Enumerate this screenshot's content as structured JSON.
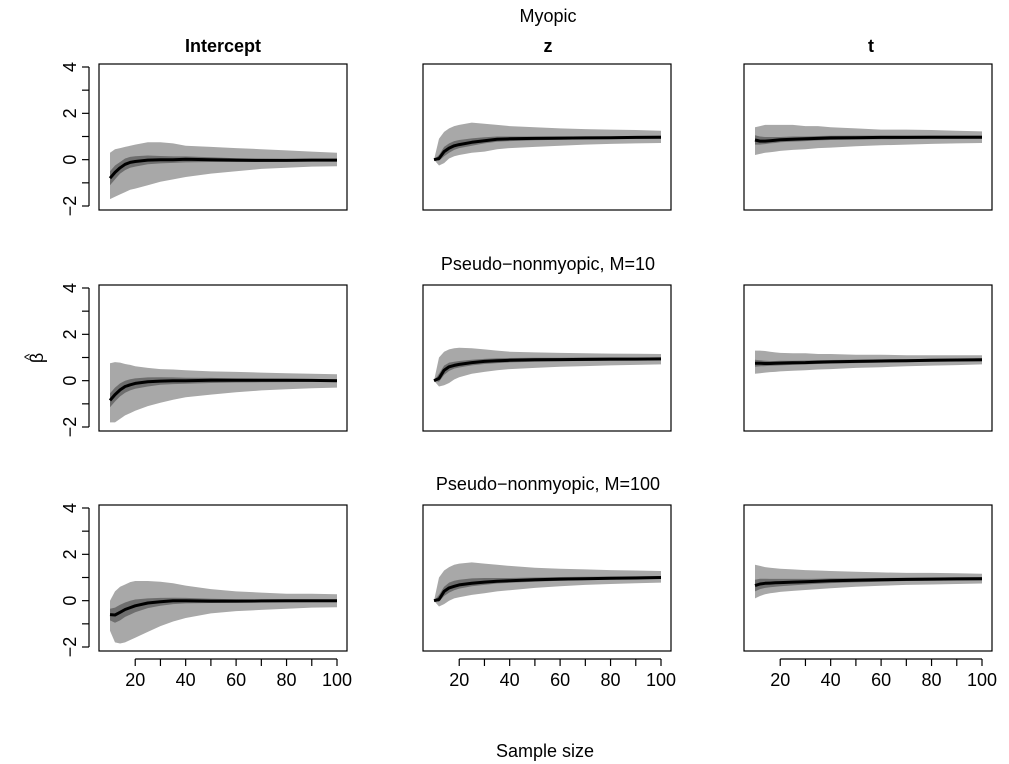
{
  "chart_data": {
    "type": "line",
    "rows": [
      {
        "title": "Myopic"
      },
      {
        "title": "Pseudo−nonmyopic, M=10"
      },
      {
        "title": "Pseudo−nonmyopic, M=100"
      }
    ],
    "columns": [
      {
        "title": "Intercept"
      },
      {
        "title": "z"
      },
      {
        "title": "t"
      }
    ],
    "xlabel": "Sample size",
    "ylabel_text": "β",
    "ylabel_hat": "^",
    "xlim": [
      10,
      100
    ],
    "ylim": [
      -2,
      4
    ],
    "x_ticks": [
      20,
      40,
      60,
      80,
      100
    ],
    "x_tick_labels": [
      "20",
      "40",
      "60",
      "80",
      "100"
    ],
    "y_ticks": [
      -2,
      0,
      2,
      4
    ],
    "y_tick_labels": [
      "−2",
      "0",
      "2",
      "4"
    ],
    "colors": {
      "outer_band": "#a8a8a8",
      "inner_band": "#6e6e6e",
      "line": "#000000"
    },
    "x": [
      10,
      12,
      14,
      16,
      18,
      20,
      25,
      30,
      35,
      40,
      50,
      60,
      70,
      80,
      90,
      100
    ],
    "panels": [
      {
        "row": 0,
        "col": 0,
        "mean": [
          -0.8,
          -0.55,
          -0.35,
          -0.2,
          -0.12,
          -0.08,
          -0.02,
          0.0,
          0.0,
          0.02,
          0.0,
          -0.02,
          -0.03,
          -0.03,
          -0.02,
          -0.02
        ],
        "inner_lo": [
          -1.1,
          -0.85,
          -0.6,
          -0.45,
          -0.35,
          -0.3,
          -0.2,
          -0.16,
          -0.14,
          -0.12,
          -0.1,
          -0.1,
          -0.09,
          -0.08,
          -0.07,
          -0.07
        ],
        "inner_hi": [
          -0.5,
          -0.25,
          -0.1,
          0.05,
          0.12,
          0.15,
          0.18,
          0.16,
          0.14,
          0.14,
          0.1,
          0.06,
          0.04,
          0.03,
          0.03,
          0.03
        ],
        "outer_lo": [
          -1.7,
          -1.6,
          -1.5,
          -1.4,
          -1.3,
          -1.25,
          -1.1,
          -0.95,
          -0.85,
          -0.75,
          -0.6,
          -0.5,
          -0.4,
          -0.35,
          -0.3,
          -0.28
        ],
        "outer_hi": [
          0.3,
          0.45,
          0.5,
          0.55,
          0.6,
          0.65,
          0.75,
          0.75,
          0.7,
          0.6,
          0.55,
          0.5,
          0.45,
          0.4,
          0.35,
          0.3
        ]
      },
      {
        "row": 0,
        "col": 1,
        "mean": [
          0.0,
          0.05,
          0.35,
          0.5,
          0.6,
          0.65,
          0.75,
          0.82,
          0.88,
          0.9,
          0.92,
          0.93,
          0.94,
          0.95,
          0.96,
          0.97
        ],
        "inner_lo": [
          0.0,
          -0.05,
          0.15,
          0.3,
          0.42,
          0.5,
          0.6,
          0.7,
          0.77,
          0.8,
          0.84,
          0.86,
          0.88,
          0.89,
          0.9,
          0.91
        ],
        "inner_hi": [
          0.0,
          0.2,
          0.55,
          0.7,
          0.8,
          0.85,
          0.92,
          0.97,
          1.0,
          1.0,
          1.0,
          1.0,
          1.0,
          1.0,
          1.02,
          1.03
        ],
        "outer_lo": [
          0.0,
          -0.25,
          -0.15,
          0.05,
          0.15,
          0.2,
          0.3,
          0.35,
          0.45,
          0.5,
          0.55,
          0.6,
          0.65,
          0.68,
          0.7,
          0.72
        ],
        "outer_hi": [
          0.0,
          0.9,
          1.2,
          1.35,
          1.45,
          1.5,
          1.6,
          1.55,
          1.5,
          1.45,
          1.4,
          1.35,
          1.32,
          1.3,
          1.28,
          1.25
        ]
      },
      {
        "row": 0,
        "col": 2,
        "mean": [
          0.85,
          0.8,
          0.8,
          0.82,
          0.84,
          0.86,
          0.88,
          0.9,
          0.92,
          0.94,
          0.95,
          0.96,
          0.96,
          0.97,
          0.97,
          0.97
        ],
        "inner_lo": [
          0.65,
          0.65,
          0.67,
          0.7,
          0.72,
          0.75,
          0.78,
          0.8,
          0.83,
          0.85,
          0.87,
          0.88,
          0.89,
          0.9,
          0.9,
          0.91
        ],
        "inner_hi": [
          1.05,
          1.0,
          0.98,
          0.98,
          0.98,
          0.98,
          1.0,
          1.0,
          1.02,
          1.03,
          1.04,
          1.04,
          1.04,
          1.04,
          1.04,
          1.04
        ],
        "outer_lo": [
          0.2,
          0.25,
          0.3,
          0.32,
          0.35,
          0.38,
          0.42,
          0.45,
          0.5,
          0.52,
          0.58,
          0.62,
          0.65,
          0.68,
          0.7,
          0.72
        ],
        "outer_hi": [
          1.4,
          1.45,
          1.5,
          1.5,
          1.5,
          1.5,
          1.5,
          1.45,
          1.45,
          1.4,
          1.35,
          1.3,
          1.3,
          1.28,
          1.25,
          1.22
        ]
      },
      {
        "row": 1,
        "col": 0,
        "mean": [
          -0.85,
          -0.6,
          -0.4,
          -0.25,
          -0.18,
          -0.12,
          -0.05,
          -0.02,
          0.0,
          0.0,
          0.02,
          0.02,
          0.02,
          0.02,
          0.01,
          0.0
        ],
        "inner_lo": [
          -1.15,
          -0.9,
          -0.68,
          -0.52,
          -0.42,
          -0.35,
          -0.25,
          -0.18,
          -0.15,
          -0.13,
          -0.1,
          -0.08,
          -0.07,
          -0.06,
          -0.05,
          -0.05
        ],
        "inner_hi": [
          -0.55,
          -0.3,
          -0.12,
          0.0,
          0.06,
          0.1,
          0.14,
          0.15,
          0.14,
          0.13,
          0.12,
          0.1,
          0.09,
          0.08,
          0.07,
          0.06
        ],
        "outer_lo": [
          -1.8,
          -1.8,
          -1.65,
          -1.5,
          -1.4,
          -1.3,
          -1.1,
          -0.95,
          -0.82,
          -0.72,
          -0.6,
          -0.5,
          -0.42,
          -0.37,
          -0.33,
          -0.3
        ],
        "outer_hi": [
          0.75,
          0.8,
          0.78,
          0.72,
          0.68,
          0.62,
          0.55,
          0.5,
          0.48,
          0.45,
          0.4,
          0.38,
          0.35,
          0.32,
          0.3,
          0.28
        ]
      },
      {
        "row": 1,
        "col": 1,
        "mean": [
          0.0,
          0.1,
          0.45,
          0.6,
          0.66,
          0.7,
          0.78,
          0.83,
          0.86,
          0.88,
          0.9,
          0.91,
          0.92,
          0.93,
          0.93,
          0.94
        ],
        "inner_lo": [
          0.0,
          -0.05,
          0.25,
          0.42,
          0.52,
          0.57,
          0.66,
          0.72,
          0.76,
          0.79,
          0.82,
          0.84,
          0.85,
          0.86,
          0.87,
          0.88
        ],
        "inner_hi": [
          0.0,
          0.3,
          0.65,
          0.78,
          0.82,
          0.85,
          0.9,
          0.94,
          0.97,
          0.98,
          0.99,
          0.99,
          1.0,
          1.0,
          1.0,
          1.0
        ],
        "outer_lo": [
          0.0,
          -0.25,
          -0.2,
          -0.1,
          0.05,
          0.15,
          0.3,
          0.38,
          0.45,
          0.5,
          0.55,
          0.6,
          0.63,
          0.66,
          0.68,
          0.7
        ],
        "outer_hi": [
          0.0,
          1.0,
          1.25,
          1.35,
          1.4,
          1.42,
          1.4,
          1.35,
          1.3,
          1.25,
          1.22,
          1.2,
          1.18,
          1.17,
          1.16,
          1.15
        ]
      },
      {
        "row": 1,
        "col": 2,
        "mean": [
          0.75,
          0.75,
          0.74,
          0.74,
          0.75,
          0.76,
          0.77,
          0.78,
          0.8,
          0.81,
          0.83,
          0.85,
          0.86,
          0.88,
          0.89,
          0.9
        ],
        "inner_lo": [
          0.6,
          0.62,
          0.63,
          0.64,
          0.65,
          0.66,
          0.68,
          0.7,
          0.72,
          0.74,
          0.76,
          0.78,
          0.8,
          0.82,
          0.83,
          0.84
        ],
        "inner_hi": [
          0.9,
          0.88,
          0.86,
          0.85,
          0.85,
          0.86,
          0.86,
          0.87,
          0.88,
          0.89,
          0.9,
          0.92,
          0.93,
          0.94,
          0.95,
          0.96
        ],
        "outer_lo": [
          0.3,
          0.32,
          0.35,
          0.37,
          0.38,
          0.4,
          0.43,
          0.45,
          0.48,
          0.5,
          0.55,
          0.58,
          0.62,
          0.65,
          0.67,
          0.7
        ],
        "outer_hi": [
          1.3,
          1.3,
          1.28,
          1.25,
          1.22,
          1.2,
          1.18,
          1.18,
          1.15,
          1.15,
          1.12,
          1.12,
          1.1,
          1.1,
          1.1,
          1.1
        ]
      },
      {
        "row": 2,
        "col": 0,
        "mean": [
          -0.6,
          -0.62,
          -0.5,
          -0.38,
          -0.3,
          -0.22,
          -0.1,
          -0.05,
          0.0,
          0.0,
          -0.02,
          -0.02,
          -0.01,
          0.0,
          0.0,
          0.0
        ],
        "inner_lo": [
          -0.85,
          -0.95,
          -0.85,
          -0.7,
          -0.6,
          -0.5,
          -0.32,
          -0.22,
          -0.15,
          -0.12,
          -0.1,
          -0.09,
          -0.08,
          -0.07,
          -0.06,
          -0.06
        ],
        "inner_hi": [
          -0.35,
          -0.3,
          -0.18,
          -0.08,
          0.0,
          0.05,
          0.1,
          0.12,
          0.13,
          0.12,
          0.08,
          0.06,
          0.05,
          0.05,
          0.05,
          0.05
        ],
        "outer_lo": [
          -1.3,
          -1.8,
          -1.85,
          -1.8,
          -1.7,
          -1.6,
          -1.35,
          -1.1,
          -0.9,
          -0.75,
          -0.55,
          -0.45,
          -0.4,
          -0.35,
          -0.3,
          -0.28
        ],
        "outer_hi": [
          0.0,
          0.4,
          0.6,
          0.7,
          0.8,
          0.85,
          0.85,
          0.82,
          0.75,
          0.65,
          0.5,
          0.4,
          0.35,
          0.3,
          0.3,
          0.28
        ]
      },
      {
        "row": 2,
        "col": 1,
        "mean": [
          0.0,
          0.05,
          0.4,
          0.55,
          0.62,
          0.68,
          0.75,
          0.8,
          0.84,
          0.86,
          0.9,
          0.93,
          0.95,
          0.97,
          0.98,
          1.0
        ],
        "inner_lo": [
          0.0,
          -0.05,
          0.2,
          0.35,
          0.45,
          0.52,
          0.62,
          0.68,
          0.74,
          0.77,
          0.82,
          0.86,
          0.89,
          0.91,
          0.93,
          0.95
        ],
        "inner_hi": [
          0.0,
          0.25,
          0.6,
          0.78,
          0.86,
          0.9,
          0.96,
          0.98,
          0.98,
          0.98,
          1.0,
          1.02,
          1.03,
          1.04,
          1.05,
          1.06
        ],
        "outer_lo": [
          0.0,
          -0.25,
          -0.15,
          0.0,
          0.1,
          0.15,
          0.25,
          0.32,
          0.4,
          0.45,
          0.55,
          0.62,
          0.68,
          0.72,
          0.75,
          0.78
        ],
        "outer_hi": [
          0.0,
          1.0,
          1.3,
          1.45,
          1.55,
          1.6,
          1.65,
          1.6,
          1.55,
          1.5,
          1.42,
          1.38,
          1.35,
          1.32,
          1.3,
          1.28
        ]
      },
      {
        "row": 2,
        "col": 2,
        "mean": [
          0.65,
          0.72,
          0.75,
          0.76,
          0.77,
          0.78,
          0.8,
          0.82,
          0.84,
          0.86,
          0.88,
          0.9,
          0.92,
          0.93,
          0.94,
          0.95
        ],
        "inner_lo": [
          0.4,
          0.5,
          0.55,
          0.58,
          0.6,
          0.62,
          0.66,
          0.7,
          0.73,
          0.76,
          0.79,
          0.82,
          0.85,
          0.86,
          0.87,
          0.88
        ],
        "inner_hi": [
          0.9,
          0.95,
          0.95,
          0.94,
          0.94,
          0.94,
          0.94,
          0.94,
          0.95,
          0.96,
          0.97,
          0.98,
          0.99,
          1.0,
          1.01,
          1.02
        ],
        "outer_lo": [
          0.1,
          0.2,
          0.28,
          0.32,
          0.35,
          0.38,
          0.42,
          0.46,
          0.5,
          0.54,
          0.6,
          0.64,
          0.68,
          0.7,
          0.72,
          0.74
        ],
        "outer_hi": [
          1.55,
          1.5,
          1.45,
          1.42,
          1.4,
          1.38,
          1.35,
          1.32,
          1.3,
          1.28,
          1.25,
          1.22,
          1.2,
          1.2,
          1.18,
          1.16
        ]
      }
    ]
  }
}
